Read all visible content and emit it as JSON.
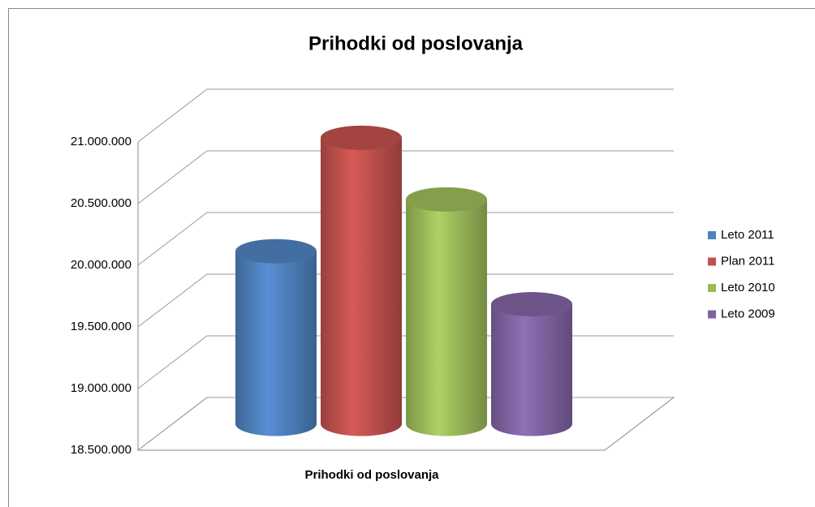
{
  "chart_data": {
    "type": "cylinder",
    "title": "Prihodki od poslovanja",
    "categories": [
      "Prihodki od poslovanja"
    ],
    "series": [
      {
        "name": "Leto 2011",
        "color": "#4f81bd",
        "values": [
          19900000
        ]
      },
      {
        "name": "Plan 2011",
        "color": "#c0504d",
        "values": [
          20820000
        ]
      },
      {
        "name": "Leto 2010",
        "color": "#9bbb59",
        "values": [
          20320000
        ]
      },
      {
        "name": "Leto 2009",
        "color": "#8064a2",
        "values": [
          19470000
        ]
      }
    ],
    "ylim": [
      18500000,
      21000000
    ],
    "yticks": [
      {
        "value": 18500000,
        "label": "18.500.000"
      },
      {
        "value": 19000000,
        "label": "19.000.000"
      },
      {
        "value": 19500000,
        "label": "19.500.000"
      },
      {
        "value": 20000000,
        "label": "20.000.000"
      },
      {
        "value": 20500000,
        "label": "20.500.000"
      },
      {
        "value": 21000000,
        "label": "21.000.000"
      }
    ],
    "grid": true,
    "legend": "right"
  }
}
